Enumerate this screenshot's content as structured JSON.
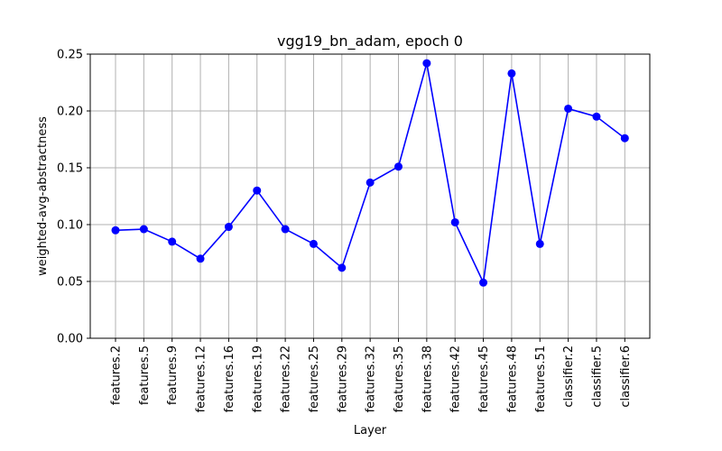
{
  "chart_data": {
    "type": "line",
    "title": "vgg19_bn_adam, epoch 0",
    "xlabel": "Layer",
    "ylabel": "weighted-avg-abstractness",
    "categories": [
      "features.2",
      "features.5",
      "features.9",
      "features.12",
      "features.16",
      "features.19",
      "features.22",
      "features.25",
      "features.29",
      "features.32",
      "features.35",
      "features.38",
      "features.42",
      "features.45",
      "features.48",
      "features.51",
      "classifier.2",
      "classifier.5",
      "classifier.6"
    ],
    "series": [
      {
        "values": [
          0.095,
          0.096,
          0.085,
          0.07,
          0.098,
          0.13,
          0.096,
          0.083,
          0.062,
          0.137,
          0.151,
          0.242,
          0.102,
          0.049,
          0.233,
          0.083,
          0.202,
          0.195,
          0.176
        ],
        "color": "#0000ff",
        "marker": "circle"
      }
    ],
    "ylim": [
      0,
      0.25
    ],
    "yticks": [
      "0.00",
      "0.05",
      "0.10",
      "0.15",
      "0.20",
      "0.25"
    ],
    "ytick_values": [
      0,
      0.05,
      0.1,
      0.15,
      0.2,
      0.25
    ],
    "grid": true
  }
}
